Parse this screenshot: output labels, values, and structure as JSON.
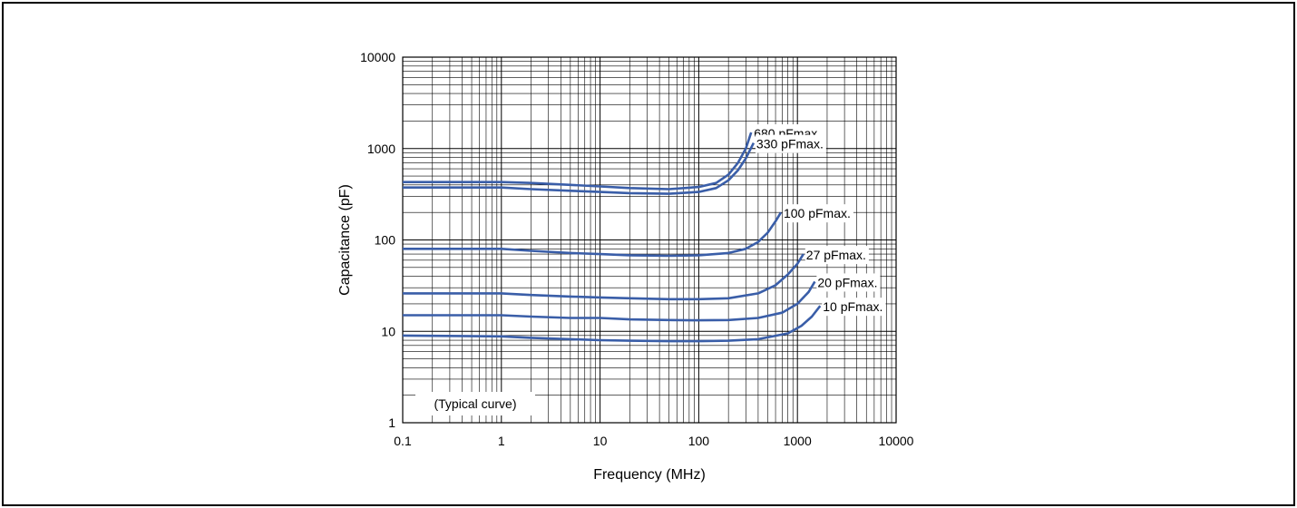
{
  "chart_data": {
    "type": "line",
    "title": "",
    "xlabel": "Frequency (MHz)",
    "ylabel": "Capacitance (pF)",
    "xscale": "log",
    "yscale": "log",
    "xlim": [
      0.1,
      10000
    ],
    "ylim": [
      1,
      10000
    ],
    "x_ticks": [
      "0.1",
      "1",
      "10",
      "100",
      "1000",
      "10000"
    ],
    "y_ticks": [
      "1",
      "10",
      "100",
      "1000",
      "10000"
    ],
    "grid": true,
    "note": "(Typical curve)",
    "line_color": "#3a5ea8",
    "series": [
      {
        "name": "680 pFmax.",
        "x": [
          0.1,
          1,
          2,
          5,
          10,
          20,
          50,
          100,
          150,
          200,
          250,
          300,
          340
        ],
        "y": [
          430,
          430,
          420,
          400,
          385,
          370,
          360,
          380,
          420,
          520,
          700,
          1000,
          1500
        ]
      },
      {
        "name": "330 pFmax.",
        "x": [
          0.1,
          1,
          2,
          5,
          10,
          20,
          50,
          100,
          150,
          200,
          250,
          300,
          360
        ],
        "y": [
          375,
          375,
          360,
          345,
          335,
          325,
          320,
          335,
          370,
          450,
          580,
          780,
          1150
        ]
      },
      {
        "name": "100 pFmax.",
        "x": [
          0.1,
          1,
          2,
          5,
          10,
          20,
          50,
          100,
          200,
          300,
          400,
          500,
          600,
          680
        ],
        "y": [
          80,
          80,
          76,
          72,
          70,
          68,
          67,
          68,
          72,
          80,
          95,
          120,
          160,
          200
        ]
      },
      {
        "name": "27 pFmax.",
        "x": [
          0.1,
          1,
          2,
          5,
          10,
          20,
          50,
          100,
          200,
          400,
          600,
          800,
          1000,
          1150
        ],
        "y": [
          26,
          26,
          25,
          24,
          23.5,
          23,
          22.5,
          22.5,
          23,
          26,
          32,
          42,
          55,
          70
        ]
      },
      {
        "name": "20 pFmax.",
        "x": [
          0.1,
          1,
          2,
          5,
          10,
          20,
          50,
          100,
          200,
          400,
          700,
          1000,
          1300,
          1500
        ],
        "y": [
          15,
          15,
          14.5,
          14,
          14,
          13.5,
          13.3,
          13.2,
          13.3,
          14,
          16,
          20,
          27,
          35
        ]
      },
      {
        "name": "10 pFmax.",
        "x": [
          0.1,
          1,
          2,
          5,
          10,
          20,
          50,
          100,
          200,
          400,
          800,
          1100,
          1400,
          1700
        ],
        "y": [
          9,
          8.8,
          8.5,
          8.2,
          8,
          7.9,
          7.8,
          7.8,
          7.9,
          8.2,
          9.5,
          11.5,
          14.5,
          19
        ]
      }
    ]
  }
}
